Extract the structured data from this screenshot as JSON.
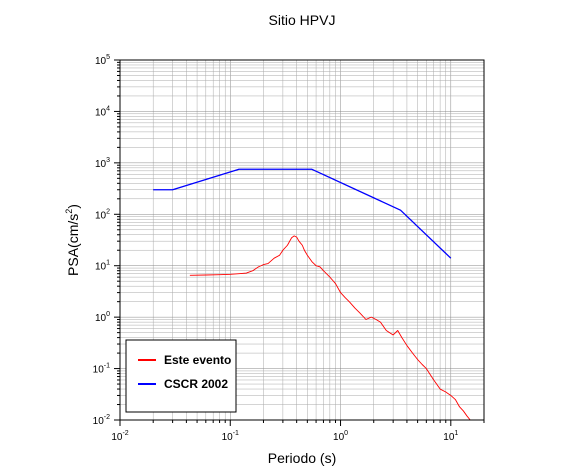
{
  "chart_data": {
    "type": "line",
    "title": "Sitio HPVJ",
    "xlabel": "Periodo (s)",
    "ylabel_base": "PSA(cm/s",
    "ylabel_exp": "2",
    "ylabel_close": ")",
    "x_scale": "log",
    "y_scale": "log",
    "xlim": [
      0.01,
      20
    ],
    "ylim": [
      0.01,
      100000
    ],
    "grid": true,
    "legend_position": "bottom-left",
    "x_tick_labels": [
      {
        "base": "10",
        "exp": "-2",
        "value": 0.01
      },
      {
        "base": "10",
        "exp": "-1",
        "value": 0.1
      },
      {
        "base": "10",
        "exp": "0",
        "value": 1
      },
      {
        "base": "10",
        "exp": "1",
        "value": 10
      }
    ],
    "y_tick_labels": [
      {
        "base": "10",
        "exp": "-2",
        "value": 0.01
      },
      {
        "base": "10",
        "exp": "-1",
        "value": 0.1
      },
      {
        "base": "10",
        "exp": "0",
        "value": 1
      },
      {
        "base": "10",
        "exp": "1",
        "value": 10
      },
      {
        "base": "10",
        "exp": "2",
        "value": 100
      },
      {
        "base": "10",
        "exp": "3",
        "value": 1000
      },
      {
        "base": "10",
        "exp": "4",
        "value": 10000
      },
      {
        "base": "10",
        "exp": "5",
        "value": 100000
      }
    ],
    "series": [
      {
        "name": "Este evento",
        "color": "#ff0000",
        "x": [
          0.043,
          0.06,
          0.08,
          0.1,
          0.12,
          0.14,
          0.16,
          0.18,
          0.2,
          0.22,
          0.25,
          0.28,
          0.3,
          0.33,
          0.36,
          0.38,
          0.4,
          0.42,
          0.45,
          0.47,
          0.5,
          0.55,
          0.6,
          0.65,
          0.7,
          0.8,
          0.9,
          1.0,
          1.1,
          1.2,
          1.35,
          1.5,
          1.7,
          1.9,
          2.1,
          2.3,
          2.6,
          3.0,
          3.3,
          3.6,
          4.0,
          4.5,
          5.0,
          5.5,
          6.0,
          7.0,
          8.0,
          9.0,
          10.0,
          11.0,
          12.0,
          13.0,
          14.0,
          15.0
        ],
        "y": [
          6.5,
          6.6,
          6.7,
          6.8,
          7.0,
          7.2,
          8.0,
          9.5,
          10.5,
          11.0,
          14.0,
          16.0,
          20.0,
          25.0,
          35.0,
          38.0,
          36.0,
          30.0,
          25.0,
          20.0,
          16.0,
          12.0,
          10.0,
          9.5,
          8.0,
          6.0,
          4.5,
          3.0,
          2.4,
          2.0,
          1.5,
          1.2,
          0.9,
          1.0,
          0.9,
          0.8,
          0.55,
          0.45,
          0.55,
          0.4,
          0.28,
          0.2,
          0.15,
          0.12,
          0.1,
          0.06,
          0.04,
          0.035,
          0.03,
          0.025,
          0.018,
          0.015,
          0.012,
          0.01
        ]
      },
      {
        "name": "CSCR 2002",
        "color": "#0000ff",
        "x": [
          0.02,
          0.03,
          0.12,
          0.55,
          3.5,
          10.0
        ],
        "y": [
          300,
          300,
          750,
          750,
          120,
          14
        ]
      }
    ]
  }
}
